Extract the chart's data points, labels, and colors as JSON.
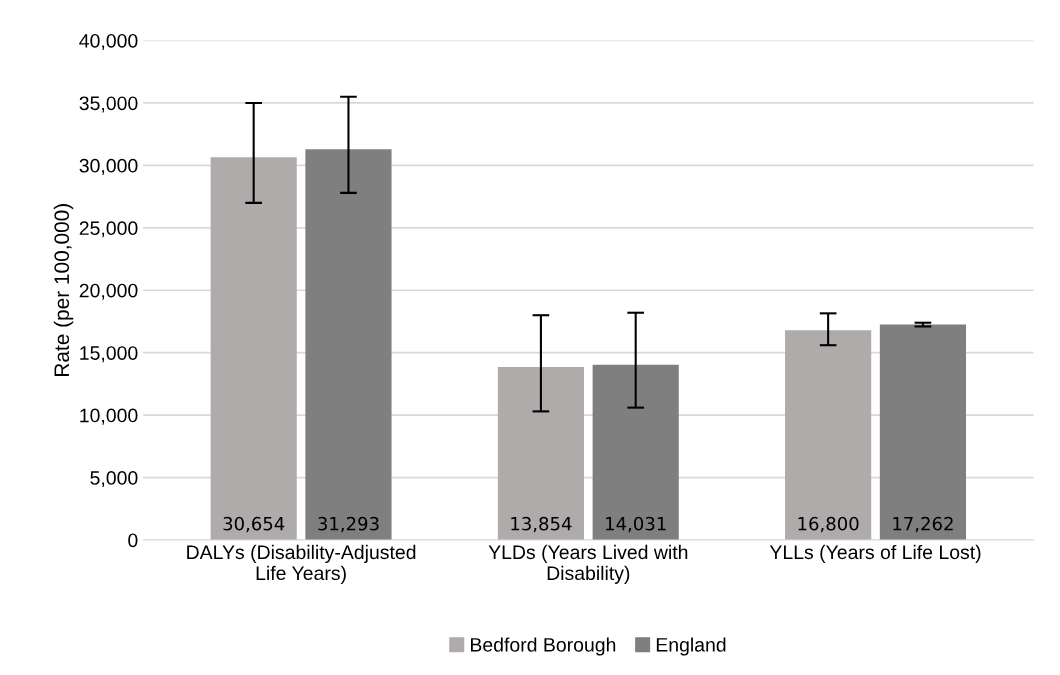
{
  "chart_data": {
    "type": "bar",
    "ylabel": "Rate (per 100,000)",
    "categories": [
      "DALYs (Disability-Adjusted Life Years)",
      "YLDs (Years Lived with Disability)",
      "YLLs (Years of Life Lost)"
    ],
    "series": [
      {
        "name": "Bedford Borough",
        "color": "#afabab",
        "values": [
          30654,
          13854,
          16800
        ],
        "value_labels": [
          "30,654",
          "13,854",
          "16,800"
        ],
        "errors": [
          [
            27000,
            35000
          ],
          [
            10300,
            18000
          ],
          [
            15600,
            18150
          ]
        ]
      },
      {
        "name": "England",
        "color": "#7f7f7f",
        "values": [
          31293,
          14031,
          17262
        ],
        "value_labels": [
          "31,293",
          "14,031",
          "17,262"
        ],
        "errors": [
          [
            27800,
            35500
          ],
          [
            10600,
            18200
          ],
          [
            17100,
            17400
          ]
        ]
      }
    ],
    "ylim": [
      0,
      40000
    ],
    "yticks": [
      {
        "value": 0,
        "label": "0"
      },
      {
        "value": 5000,
        "label": "5,000"
      },
      {
        "value": 10000,
        "label": "10,000"
      },
      {
        "value": 15000,
        "label": "15,000"
      },
      {
        "value": 20000,
        "label": "20,000"
      },
      {
        "value": 25000,
        "label": "25,000"
      },
      {
        "value": 30000,
        "label": "30,000"
      },
      {
        "value": 35000,
        "label": "35,000"
      },
      {
        "value": 40000,
        "label": "40,000"
      }
    ],
    "grid": "y",
    "legend": "bottom"
  }
}
